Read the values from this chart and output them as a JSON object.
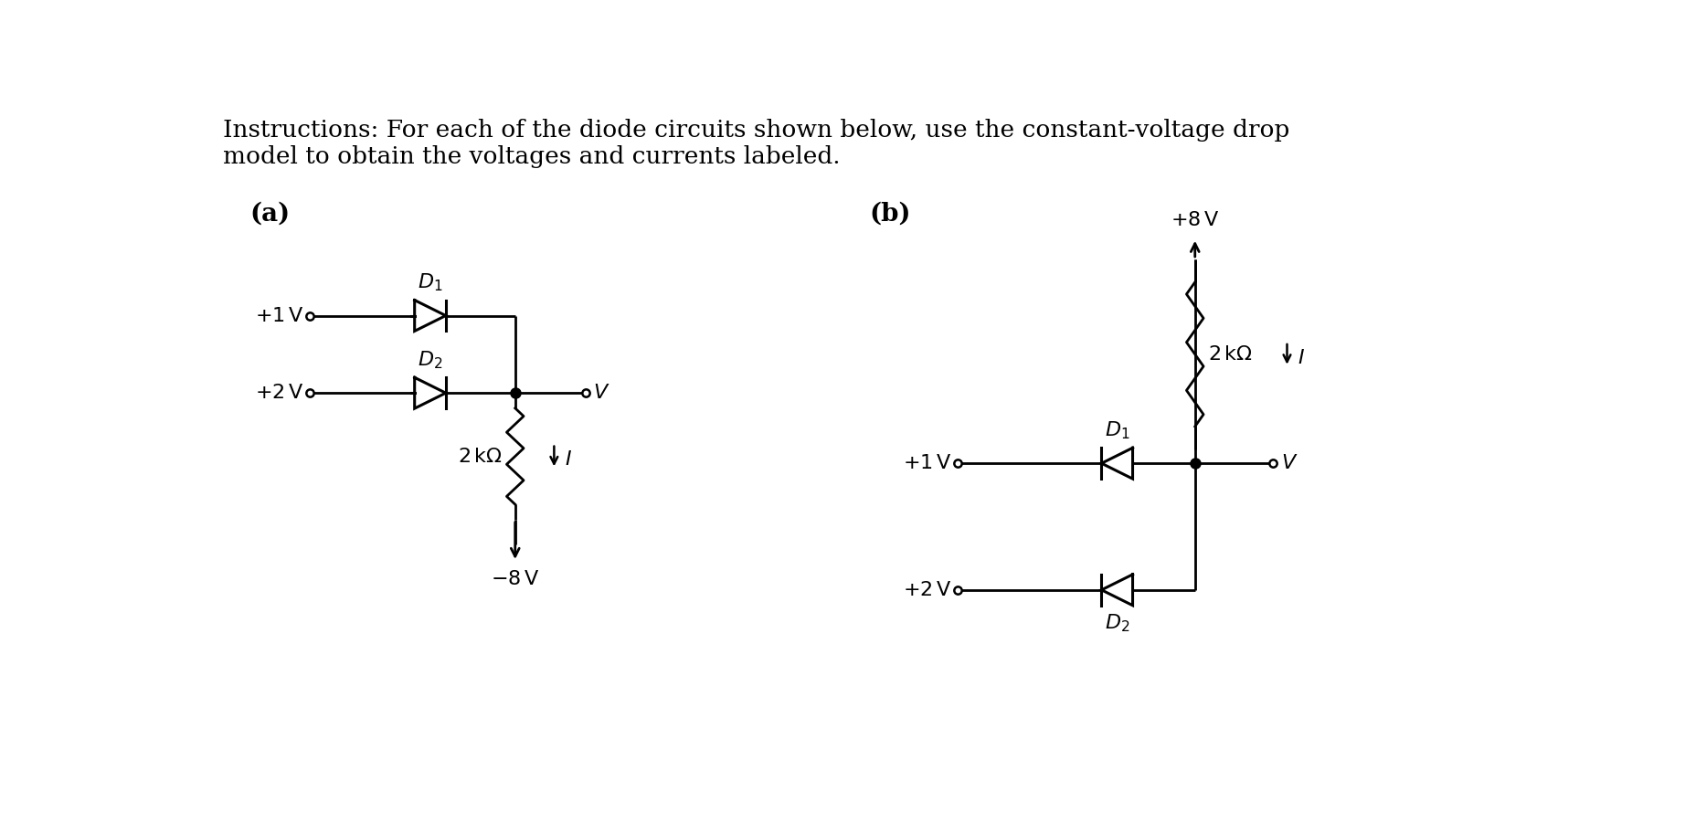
{
  "title_line1": "Instructions: For each of the diode circuits shown below, use the constant-voltage drop",
  "title_line2": "model to obtain the voltages and currents labeled.",
  "label_a": "(a)",
  "label_b": "(b)",
  "bg_color": "#ffffff",
  "text_color": "#000000",
  "line_color": "#000000",
  "font_size_title": 19,
  "font_size_label": 18,
  "font_size_comp": 16
}
